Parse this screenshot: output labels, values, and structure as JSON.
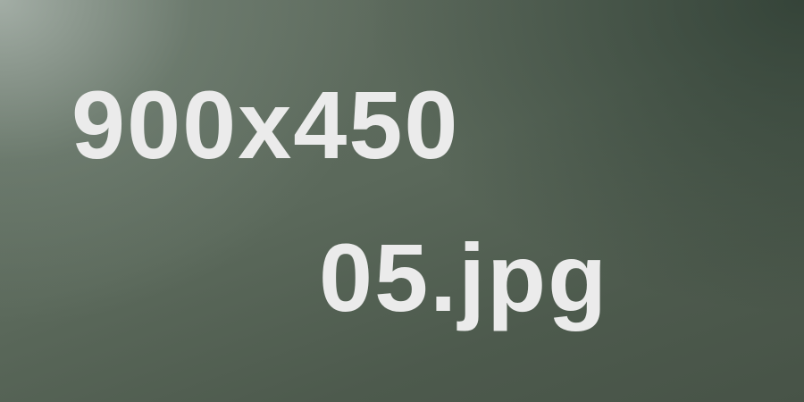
{
  "placeholder": {
    "dimensions_text": "900x450",
    "filename_text": "05.jpg",
    "text_color": "#ebebeb",
    "background_color": "#5b695b"
  }
}
